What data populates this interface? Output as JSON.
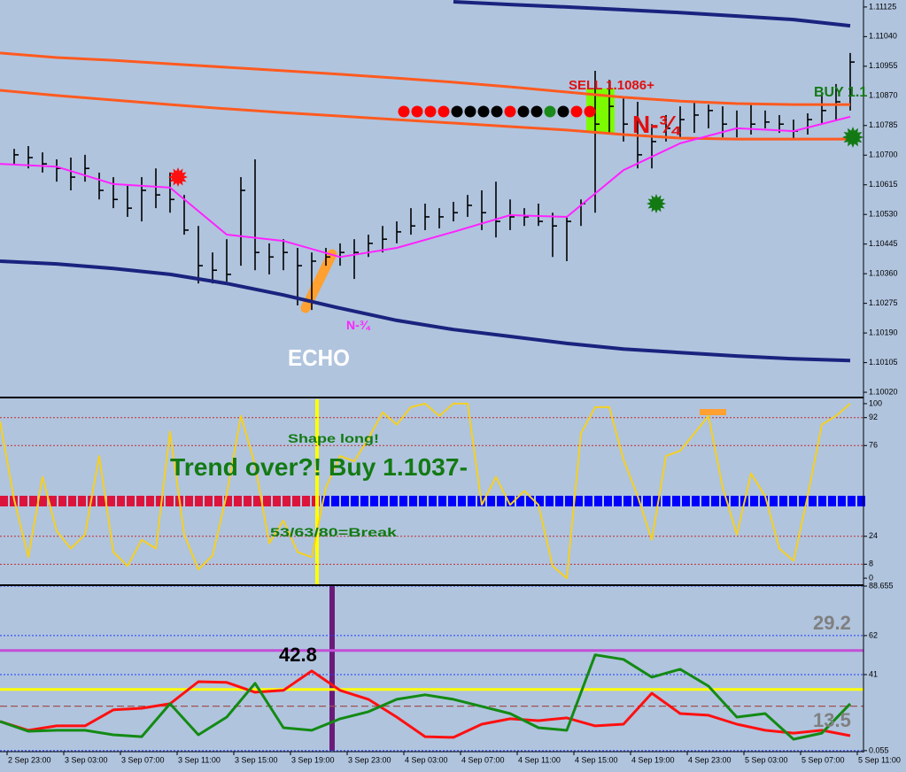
{
  "chart_data": [
    {
      "type": "ohlc",
      "xlim": [
        -0.5,
        60.5
      ],
      "ylim": [
        1.1001,
        1.11145
      ],
      "yticks": [
        1.11125,
        {
          "value": 1.1104,
          "label": "1.11040"
        },
        1.10955,
        {
          "value": 1.1087,
          "label": "1.10870"
        },
        1.10785,
        {
          "value": 1.107,
          "label": "1.10700"
        },
        1.10615,
        {
          "value": 1.1053,
          "label": "1.10530"
        },
        1.10445,
        {
          "value": 1.1036,
          "label": "1.10360"
        },
        1.10275,
        {
          "value": 1.1019,
          "label": "1.10190"
        },
        1.10105,
        {
          "value": 1.1002,
          "label": "1.10020"
        }
      ],
      "bars": {
        "color": "#000000",
        "x": [
          0.5,
          1.5,
          2.5,
          3.5,
          4.5,
          5.5,
          6.5,
          7.5,
          8.5,
          9.5,
          10.5,
          11.5,
          12.5,
          13.5,
          14.5,
          15.5,
          16.5,
          17.5,
          18.5,
          19.5,
          20.5,
          21.5,
          22.5,
          23.5,
          24.5,
          25.5,
          26.5,
          27.5,
          28.5,
          29.5,
          30.5,
          31.5,
          32.5,
          33.5,
          34.5,
          35.5,
          36.5,
          37.5,
          38.5,
          39.5,
          40.5,
          41.5,
          42.5,
          43.5,
          44.5,
          45.5,
          46.5,
          47.5,
          48.5,
          49.5,
          50.5,
          51.5,
          52.5,
          53.5,
          54.5,
          55.5,
          56.5,
          57.5,
          58.5,
          59.5
        ],
        "high": [
          1.10718,
          1.10726,
          1.10708,
          1.10688,
          1.10693,
          1.10701,
          1.1065,
          1.10637,
          1.10612,
          1.10637,
          1.10662,
          1.1065,
          1.10586,
          1.10497,
          1.10421,
          1.10459,
          1.10637,
          1.10688,
          1.10447,
          1.10459,
          1.10434,
          1.10421,
          1.10434,
          1.10447,
          1.10459,
          1.10472,
          1.10497,
          1.1051,
          1.10548,
          1.10561,
          1.10548,
          1.10566,
          1.10586,
          1.10599,
          1.10624,
          1.10573,
          1.10548,
          1.10561,
          1.10535,
          1.10523,
          1.10573,
          1.10942,
          1.10916,
          1.10866,
          1.10853,
          1.10789,
          1.10815,
          1.1084,
          1.10853,
          1.10845,
          1.1084,
          1.10828,
          1.10845,
          1.10828,
          1.10815,
          1.10802,
          1.1082,
          1.10878,
          1.10904,
          1.10993
        ],
        "low": [
          1.10675,
          1.10662,
          1.1065,
          1.10624,
          1.10599,
          1.10624,
          1.10573,
          1.10548,
          1.10523,
          1.1051,
          1.10548,
          1.10535,
          1.10472,
          1.10332,
          1.10332,
          1.10337,
          1.10383,
          1.1037,
          1.10358,
          1.1037,
          1.10269,
          1.10256,
          1.10383,
          1.10383,
          1.10345,
          1.10408,
          1.10421,
          1.10447,
          1.10472,
          1.10485,
          1.1049,
          1.1051,
          1.10523,
          1.10485,
          1.10464,
          1.10485,
          1.10497,
          1.10497,
          1.10408,
          1.10396,
          1.10497,
          1.10535,
          1.10764,
          1.10739,
          1.10662,
          1.10662,
          1.10739,
          1.10751,
          1.10764,
          1.10777,
          1.10751,
          1.10751,
          1.10759,
          1.10777,
          1.10764,
          1.10744,
          1.10759,
          1.10789,
          1.10802,
          1.10828
        ],
        "close": [
          1.10701,
          1.10693,
          1.10675,
          1.10662,
          1.10637,
          1.10662,
          1.10599,
          1.10573,
          1.10548,
          1.10599,
          1.10586,
          1.10573,
          1.10485,
          1.10383,
          1.1037,
          1.10358,
          1.10599,
          1.10421,
          1.10408,
          1.10421,
          1.10383,
          1.10396,
          1.10408,
          1.10421,
          1.10421,
          1.10447,
          1.10459,
          1.1048,
          1.10497,
          1.10523,
          1.10523,
          1.10535,
          1.10556,
          1.10535,
          1.1051,
          1.10523,
          1.10523,
          1.1051,
          1.10497,
          1.1051,
          1.10561,
          1.10789,
          1.1084,
          1.10789,
          1.10701,
          1.10739,
          1.10777,
          1.10802,
          1.10815,
          1.10828,
          1.10789,
          1.10777,
          1.10789,
          1.10795,
          1.10789,
          1.10769,
          1.10802,
          1.10828,
          1.10853,
          1.10967
        ]
      },
      "lines": [
        {
          "color": "#1a237e",
          "width": 4,
          "x": [
            -0.5,
            3.5,
            7.5,
            11.5,
            15.5,
            19.5,
            23.5,
            27.5,
            31.5,
            35.5,
            39.5,
            43.5,
            47.5,
            51.5,
            55.5,
            59.5
          ],
          "values": [
            null,
            null,
            null,
            null,
            null,
            null,
            null,
            null,
            1.1114,
            1.11132,
            1.11125,
            1.11117,
            1.11109,
            1.11099,
            1.11089,
            1.11071
          ]
        },
        {
          "color": "#ff5a1f",
          "width": 3,
          "x": [
            -0.5,
            3.5,
            7.5,
            11.5,
            15.5,
            19.5,
            23.5,
            27.5,
            31.5,
            35.5,
            39.5,
            43.5,
            47.5,
            51.5,
            55.5,
            59.5
          ],
          "values": [
            1.10993,
            1.1098,
            1.10972,
            1.10962,
            1.10952,
            1.10942,
            1.10932,
            1.10921,
            1.10909,
            1.10896,
            1.10881,
            1.10866,
            1.10855,
            1.10848,
            1.10845,
            1.10845
          ]
        },
        {
          "color": "#ff5a1f",
          "width": 3,
          "x": [
            -0.5,
            3.5,
            7.5,
            11.5,
            15.5,
            19.5,
            23.5,
            27.5,
            31.5,
            35.5,
            39.5,
            43.5,
            47.5,
            51.5,
            55.5,
            59.5
          ],
          "values": [
            1.10886,
            1.10871,
            1.10858,
            1.10845,
            1.10833,
            1.10822,
            1.10812,
            1.10802,
            1.10792,
            1.10782,
            1.10772,
            1.10759,
            1.10749,
            1.10746,
            1.10746,
            1.10746
          ]
        },
        {
          "color": "#ff22ff",
          "width": 2,
          "x": [
            -0.5,
            3.5,
            7.5,
            11.5,
            15.5,
            19.5,
            23.5,
            27.5,
            31.5,
            35.5,
            39.5,
            43.5,
            47.5,
            51.5,
            55.5,
            59.5
          ],
          "values": [
            1.10675,
            1.10667,
            1.10617,
            1.10607,
            1.10472,
            1.10454,
            1.10408,
            1.10434,
            1.1048,
            1.10528,
            1.10523,
            1.10657,
            1.10734,
            1.10777,
            1.10769,
            1.1081
          ]
        },
        {
          "color": "#1a237e",
          "width": 4,
          "x": [
            -0.5,
            3.5,
            7.5,
            11.5,
            15.5,
            19.5,
            23.5,
            27.5,
            31.5,
            35.5,
            39.5,
            43.5,
            47.5,
            51.5,
            55.5,
            59.5
          ],
          "values": [
            1.10396,
            1.10388,
            1.10375,
            1.10358,
            1.10332,
            1.10299,
            1.10261,
            1.10226,
            1.102,
            1.1018,
            1.1016,
            1.10144,
            1.10134,
            1.10124,
            1.10116,
            1.10111
          ]
        }
      ],
      "annotations": [
        "SELL 1.1086+",
        "BUY 1.1",
        "N-¾",
        "N-¾",
        "ECHO"
      ]
    },
    {
      "type": "line",
      "xlim": [
        -0.5,
        60.5
      ],
      "ylim": [
        -3,
        102
      ],
      "yticks": [
        0,
        8,
        24,
        76,
        92,
        100
      ],
      "levels": [
        8,
        24,
        76,
        92
      ],
      "series": [
        {
          "color": "#f5d020",
          "x": [
            -0.5,
            0.5,
            1.5,
            2.5,
            3.5,
            4.5,
            5.5,
            6.5,
            7.5,
            8.5,
            9.5,
            10.5,
            11.5,
            12.5,
            13.5,
            14.5,
            15.5,
            16.5,
            17.5,
            18.5,
            19.5,
            20.5,
            21.5,
            22.5,
            23.5,
            24.5,
            25.5,
            26.5,
            27.5,
            28.5,
            29.5,
            30.5,
            31.5,
            32.5,
            33.5,
            34.5,
            35.5,
            36.5,
            37.5,
            38.5,
            39.5,
            40.5,
            41.5,
            42.5,
            43.5,
            44.5,
            45.5,
            46.5,
            47.5,
            48.5,
            49.5,
            50.5,
            51.5,
            52.5,
            53.5,
            54.5,
            55.5,
            56.5,
            57.5,
            58.5,
            59.5
          ],
          "values": [
            90,
            45,
            12,
            58,
            27,
            17,
            25,
            70,
            15,
            7,
            22,
            17,
            84,
            25,
            5,
            13,
            48,
            93,
            65,
            20,
            33,
            15,
            12,
            52,
            70,
            67,
            80,
            95,
            88,
            98,
            100,
            93,
            100,
            100,
            42,
            58,
            42,
            50,
            42,
            7,
            0,
            83,
            98,
            98,
            68,
            47,
            22,
            70,
            73,
            83,
            93,
            52,
            25,
            60,
            47,
            17,
            10,
            47,
            88,
            93,
            100
          ]
        }
      ],
      "annotations": [
        "Shape long!",
        "Trend over?! Buy 1.1037-",
        "53/63/80=Break"
      ]
    },
    {
      "type": "line",
      "xlim": [
        -0.5,
        60.5
      ],
      "ylim": [
        0,
        88.655
      ],
      "yticks": [
        0.055,
        41,
        62,
        88.655
      ],
      "grid": true,
      "hlines": [
        {
          "value": 54,
          "color": "#c24fd6"
        },
        {
          "value": 33,
          "color": "#ffff00"
        },
        {
          "value": 24,
          "color": "#a0524f"
        }
      ],
      "xticks": [
        {
          "value": 0,
          "label": "2 Sep 23:00"
        },
        {
          "value": 4,
          "label": "3 Sep 03:00"
        },
        {
          "value": 8,
          "label": "3 Sep 07:00"
        },
        {
          "value": 12,
          "label": "3 Sep 11:00"
        },
        {
          "value": 16,
          "label": "3 Sep 15:00"
        },
        {
          "value": 20,
          "label": "3 Sep 19:00"
        },
        {
          "value": 24,
          "label": "3 Sep 23:00"
        },
        {
          "value": 28,
          "label": "4 Sep 03:00"
        },
        {
          "value": 32,
          "label": "4 Sep 07:00"
        },
        {
          "value": 36,
          "label": "4 Sep 11:00"
        },
        {
          "value": 40,
          "label": "4 Sep 15:00"
        },
        {
          "value": 44,
          "label": "4 Sep 19:00"
        },
        {
          "value": 48,
          "label": "4 Sep 23:00"
        },
        {
          "value": 52,
          "label": "5 Sep 03:00"
        },
        {
          "value": 56,
          "label": "5 Sep 07:00"
        },
        {
          "value": 60,
          "label": "5 Sep 11:00"
        }
      ],
      "series": [
        {
          "color": "#ff1010",
          "x": [
            -0.5,
            1.5,
            3.5,
            5.5,
            7.5,
            9.5,
            11.5,
            13.5,
            15.5,
            17.5,
            19.5,
            21.5,
            23.5,
            25.5,
            27.5,
            29.5,
            31.5,
            33.5,
            35.5,
            37.5,
            39.5,
            41.5,
            43.5,
            45.5,
            47.5,
            49.5,
            51.5,
            53.5,
            55.5,
            57.5,
            59.5
          ],
          "values": [
            15.8,
            11.0,
            13.4,
            13.4,
            22.0,
            22.9,
            25.3,
            37.2,
            36.8,
            31.5,
            32.5,
            43.0,
            32.5,
            27.7,
            18.1,
            7.6,
            7.2,
            14.3,
            17.2,
            16.2,
            17.7,
            13.4,
            14.3,
            31.0,
            20.0,
            19.1,
            14.3,
            11.0,
            9.5,
            11.0,
            8.1
          ]
        },
        {
          "color": "#138a13",
          "x": [
            -0.5,
            1.5,
            3.5,
            5.5,
            7.5,
            9.5,
            11.5,
            13.5,
            15.5,
            17.5,
            19.5,
            21.5,
            23.5,
            25.5,
            27.5,
            29.5,
            31.5,
            33.5,
            35.5,
            37.5,
            39.5,
            41.5,
            43.5,
            45.5,
            47.5,
            49.5,
            51.5,
            53.5,
            55.5,
            57.5,
            59.5
          ],
          "values": [
            15.8,
            10.5,
            11.0,
            11.0,
            8.6,
            7.6,
            25.3,
            8.6,
            18.1,
            36.3,
            12.4,
            11.0,
            17.2,
            21.0,
            27.7,
            30.1,
            27.7,
            23.9,
            20.0,
            12.4,
            11.0,
            51.6,
            49.2,
            39.6,
            43.9,
            34.8,
            18.1,
            20.0,
            6.2,
            9.5,
            25.3
          ]
        }
      ],
      "annotations": [
        "29.2",
        "13.5",
        "42.8"
      ]
    }
  ]
}
